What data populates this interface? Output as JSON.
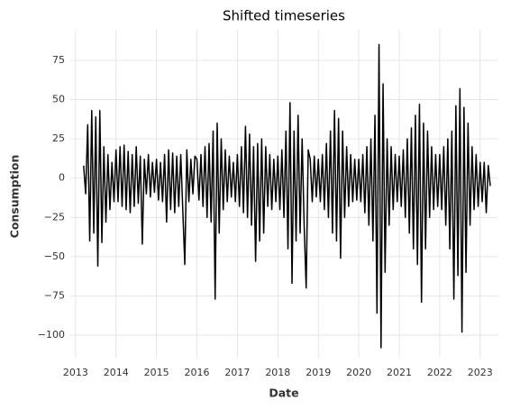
{
  "chart_data": {
    "type": "line",
    "title": "Shifted timeseries",
    "x_label": "Date",
    "y_label": "Consumption",
    "color": "#000000",
    "grid": true,
    "xlim": [
      2012.87,
      2023.45
    ],
    "xticks": [
      2013,
      2014,
      2015,
      2016,
      2017,
      2018,
      2019,
      2020,
      2021,
      2022,
      2023
    ],
    "ylim": [
      -114.3,
      94.5
    ],
    "yticks": [
      {
        "value": -100,
        "label": "−100"
      },
      {
        "value": -75,
        "label": "−75"
      },
      {
        "value": -50,
        "label": "−50"
      },
      {
        "value": -25,
        "label": "−25"
      },
      0,
      25,
      50,
      75
    ],
    "x": [
      2013.2,
      2013.25,
      2013.3,
      2013.35,
      2013.4,
      2013.45,
      2013.5,
      2013.55,
      2013.6,
      2013.65,
      2013.7,
      2013.75,
      2013.8,
      2013.85,
      2013.9,
      2013.95,
      2014.0,
      2014.05,
      2014.1,
      2014.15,
      2014.2,
      2014.25,
      2014.3,
      2014.35,
      2014.4,
      2014.45,
      2014.5,
      2014.55,
      2014.6,
      2014.65,
      2014.7,
      2014.75,
      2014.8,
      2014.85,
      2014.9,
      2014.95,
      2015.0,
      2015.05,
      2015.1,
      2015.15,
      2015.2,
      2015.25,
      2015.3,
      2015.35,
      2015.4,
      2015.45,
      2015.5,
      2015.55,
      2015.6,
      2015.65,
      2015.7,
      2015.75,
      2015.8,
      2015.85,
      2015.9,
      2015.95,
      2016.0,
      2016.05,
      2016.1,
      2016.15,
      2016.2,
      2016.25,
      2016.3,
      2016.35,
      2016.4,
      2016.45,
      2016.5,
      2016.55,
      2016.6,
      2016.65,
      2016.7,
      2016.75,
      2016.8,
      2016.85,
      2016.9,
      2016.95,
      2017.0,
      2017.05,
      2017.1,
      2017.15,
      2017.2,
      2017.25,
      2017.3,
      2017.35,
      2017.4,
      2017.45,
      2017.5,
      2017.55,
      2017.6,
      2017.65,
      2017.7,
      2017.75,
      2017.8,
      2017.85,
      2017.9,
      2017.95,
      2018.0,
      2018.05,
      2018.1,
      2018.15,
      2018.2,
      2018.25,
      2018.3,
      2018.35,
      2018.4,
      2018.45,
      2018.5,
      2018.55,
      2018.6,
      2018.65,
      2018.7,
      2018.75,
      2018.8,
      2018.85,
      2018.9,
      2018.95,
      2019.0,
      2019.05,
      2019.1,
      2019.15,
      2019.2,
      2019.25,
      2019.3,
      2019.35,
      2019.4,
      2019.45,
      2019.5,
      2019.55,
      2019.6,
      2019.65,
      2019.7,
      2019.75,
      2019.8,
      2019.85,
      2019.9,
      2019.95,
      2020.0,
      2020.05,
      2020.1,
      2020.15,
      2020.2,
      2020.25,
      2020.3,
      2020.35,
      2020.4,
      2020.45,
      2020.5,
      2020.55,
      2020.6,
      2020.65,
      2020.7,
      2020.75,
      2020.8,
      2020.85,
      2020.9,
      2020.95,
      2021.0,
      2021.05,
      2021.1,
      2021.15,
      2021.2,
      2021.25,
      2021.3,
      2021.35,
      2021.4,
      2021.45,
      2021.5,
      2021.55,
      2021.6,
      2021.65,
      2021.7,
      2021.75,
      2021.8,
      2021.85,
      2021.9,
      2021.95,
      2022.0,
      2022.05,
      2022.1,
      2022.15,
      2022.2,
      2022.25,
      2022.3,
      2022.35,
      2022.4,
      2022.45,
      2022.5,
      2022.55,
      2022.6,
      2022.65,
      2022.7,
      2022.75,
      2022.8,
      2022.85,
      2022.9,
      2022.95,
      2023.0,
      2023.05,
      2023.1,
      2023.15,
      2023.2,
      2023.25
    ],
    "values": [
      8,
      -10,
      34,
      -40,
      43,
      -35,
      39,
      -56,
      43,
      -41,
      20,
      -28,
      15,
      -20,
      10,
      -15,
      18,
      -15,
      20,
      -18,
      21,
      -20,
      17,
      -22,
      15,
      -18,
      20,
      -16,
      14,
      -42,
      12,
      -10,
      15,
      -12,
      10,
      -9,
      12,
      -14,
      10,
      -15,
      15,
      -28,
      18,
      -20,
      16,
      -22,
      14,
      -18,
      15,
      -20,
      -55,
      18,
      -15,
      12,
      -10,
      14,
      12,
      -14,
      15,
      -18,
      20,
      -25,
      22,
      -28,
      30,
      -77,
      35,
      -35,
      25,
      -20,
      18,
      -15,
      14,
      -12,
      10,
      -15,
      15,
      -18,
      20,
      -22,
      33,
      -25,
      28,
      -30,
      20,
      -53,
      22,
      -40,
      25,
      -35,
      20,
      -18,
      15,
      -20,
      12,
      -15,
      14,
      -20,
      18,
      -25,
      30,
      -45,
      48,
      -67,
      30,
      -40,
      40,
      -35,
      25,
      -30,
      -70,
      18,
      12,
      -15,
      14,
      -12,
      12,
      -15,
      15,
      -20,
      22,
      -25,
      30,
      -35,
      43,
      -40,
      38,
      -51,
      30,
      -25,
      20,
      -18,
      15,
      -15,
      12,
      -14,
      12,
      -15,
      15,
      -22,
      20,
      -30,
      25,
      -40,
      40,
      -86,
      85,
      -108,
      60,
      -60,
      25,
      -30,
      20,
      -20,
      15,
      -15,
      14,
      -18,
      18,
      -25,
      25,
      -35,
      32,
      -45,
      40,
      -55,
      47,
      -79,
      35,
      -45,
      30,
      -25,
      20,
      -20,
      15,
      -18,
      15,
      -20,
      20,
      -30,
      25,
      -45,
      30,
      -77,
      46,
      -62,
      57,
      -98,
      45,
      -60,
      35,
      -30,
      20,
      -20,
      15,
      -18,
      10,
      -15,
      10,
      -22,
      8,
      -5
    ]
  }
}
